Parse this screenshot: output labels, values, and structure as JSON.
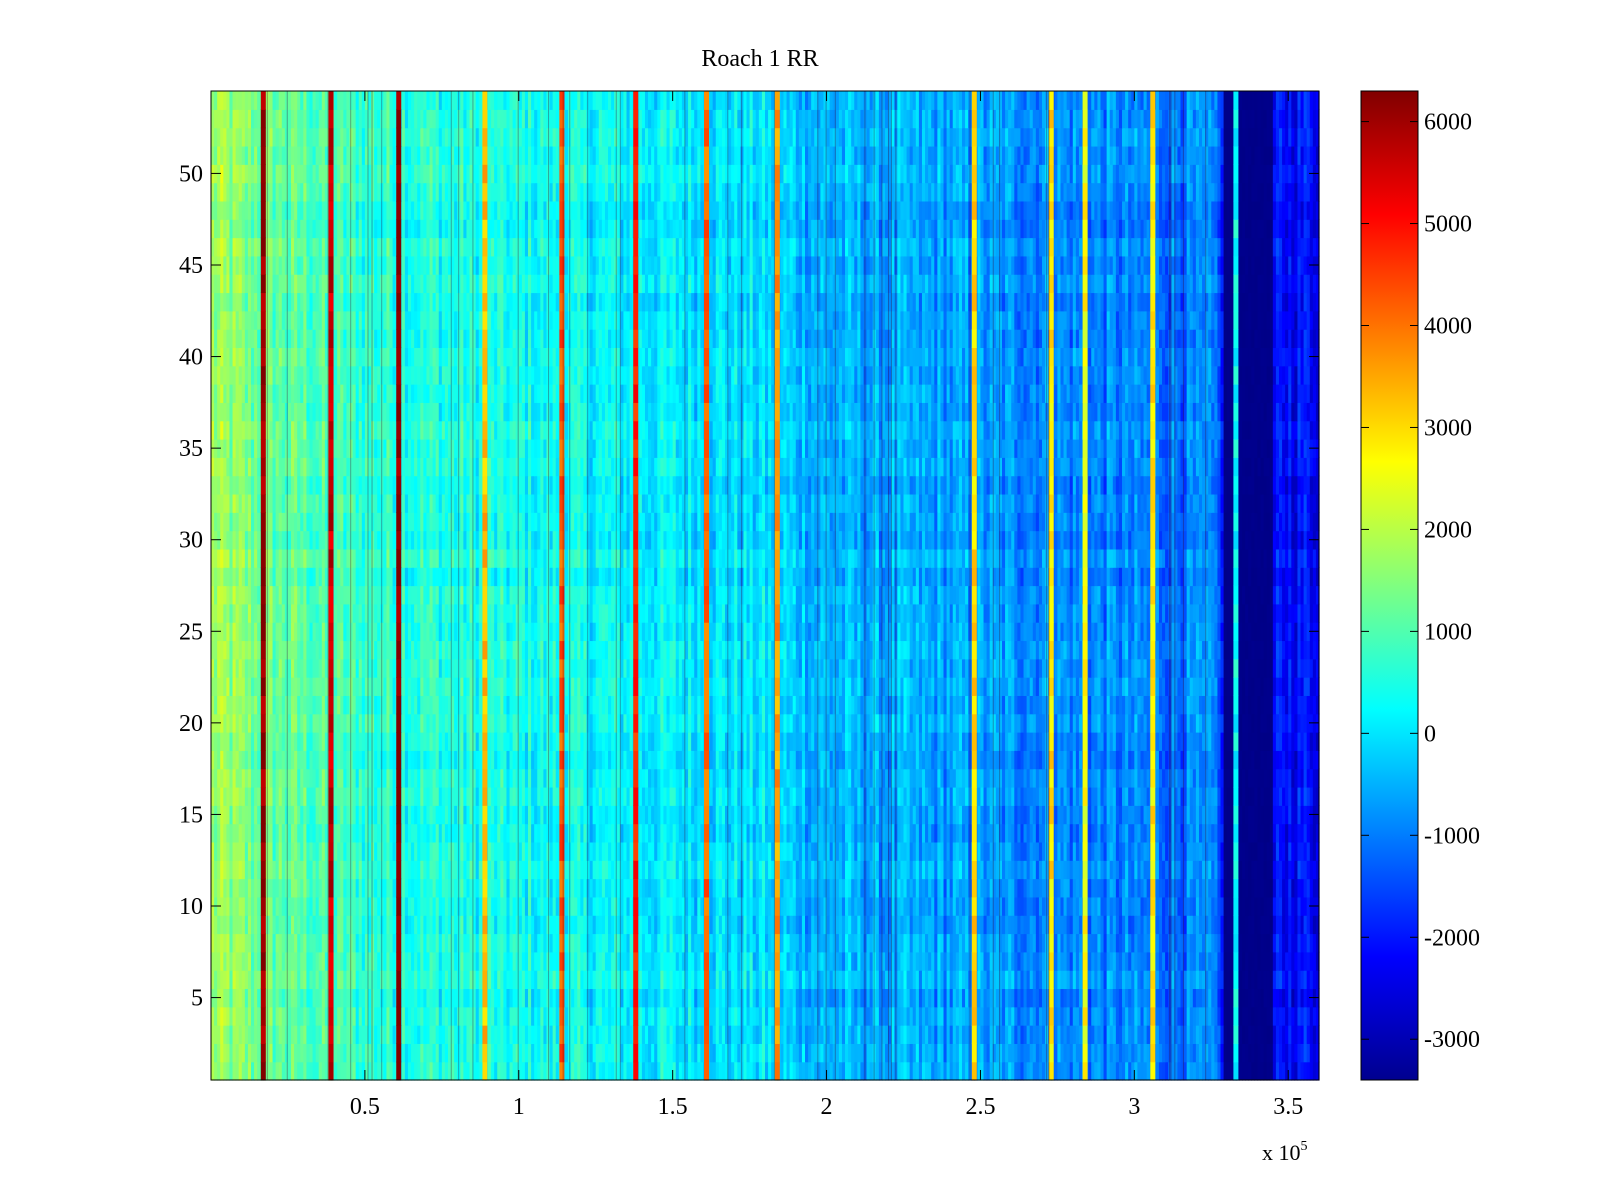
{
  "chart_data": {
    "type": "heatmap",
    "title": "Roach 1 RR",
    "xlabel": "",
    "ylabel": "",
    "x_multiplier_label": "x 10",
    "x_multiplier_exponent": "5",
    "xlim": [
      0,
      3.6
    ],
    "ylim": [
      0.5,
      54.5
    ],
    "x_ticks": [
      {
        "value": 0.5,
        "label": "0.5"
      },
      {
        "value": 1,
        "label": "1"
      },
      {
        "value": 1.5,
        "label": "1.5"
      },
      {
        "value": 2,
        "label": "2"
      },
      {
        "value": 2.5,
        "label": "2.5"
      },
      {
        "value": 3,
        "label": "3"
      },
      {
        "value": 3.5,
        "label": "3.5"
      }
    ],
    "y_ticks": [
      {
        "value": 5,
        "label": "5"
      },
      {
        "value": 10,
        "label": "10"
      },
      {
        "value": 15,
        "label": "15"
      },
      {
        "value": 20,
        "label": "20"
      },
      {
        "value": 25,
        "label": "25"
      },
      {
        "value": 30,
        "label": "30"
      },
      {
        "value": 35,
        "label": "35"
      },
      {
        "value": 40,
        "label": "40"
      },
      {
        "value": 45,
        "label": "45"
      },
      {
        "value": 50,
        "label": "50"
      }
    ],
    "rows": 54,
    "colorbar": {
      "min": -3400,
      "max": 6300,
      "colormap": "jet",
      "ticks": [
        {
          "value": 6000,
          "label": "6000"
        },
        {
          "value": 5000,
          "label": "5000"
        },
        {
          "value": 4000,
          "label": "4000"
        },
        {
          "value": 3000,
          "label": "3000"
        },
        {
          "value": 2000,
          "label": "2000"
        },
        {
          "value": 1000,
          "label": "1000"
        },
        {
          "value": 0,
          "label": "0"
        },
        {
          "value": -1000,
          "label": "-1000"
        },
        {
          "value": -2000,
          "label": "-2000"
        },
        {
          "value": -3000,
          "label": "-3000"
        }
      ]
    },
    "baseline_profile": [
      {
        "x": 0.0,
        "value": 1700
      },
      {
        "x": 0.15,
        "value": 1300
      },
      {
        "x": 0.5,
        "value": 700
      },
      {
        "x": 1.0,
        "value": 350
      },
      {
        "x": 1.5,
        "value": 100
      },
      {
        "x": 1.8,
        "value": -100
      },
      {
        "x": 2.0,
        "value": -500
      },
      {
        "x": 2.5,
        "value": -750
      },
      {
        "x": 3.0,
        "value": -1000
      },
      {
        "x": 3.28,
        "value": -1100
      },
      {
        "x": 3.29,
        "value": -3300
      },
      {
        "x": 3.45,
        "value": -3300
      },
      {
        "x": 3.46,
        "value": -2100
      },
      {
        "x": 3.6,
        "value": -2100
      }
    ],
    "stripes": [
      {
        "x": 0.17,
        "value": 6100
      },
      {
        "x": 0.39,
        "value": 5600
      },
      {
        "x": 0.61,
        "value": 6200
      },
      {
        "x": 0.89,
        "value": 3300
      },
      {
        "x": 1.14,
        "value": 4300
      },
      {
        "x": 1.38,
        "value": 4800
      },
      {
        "x": 1.61,
        "value": 4100
      },
      {
        "x": 1.84,
        "value": 3600
      },
      {
        "x": 2.48,
        "value": 3000
      },
      {
        "x": 2.73,
        "value": 2900
      },
      {
        "x": 2.84,
        "value": 2600
      },
      {
        "x": 3.06,
        "value": 2900
      },
      {
        "x": 3.33,
        "value": 300
      }
    ]
  }
}
